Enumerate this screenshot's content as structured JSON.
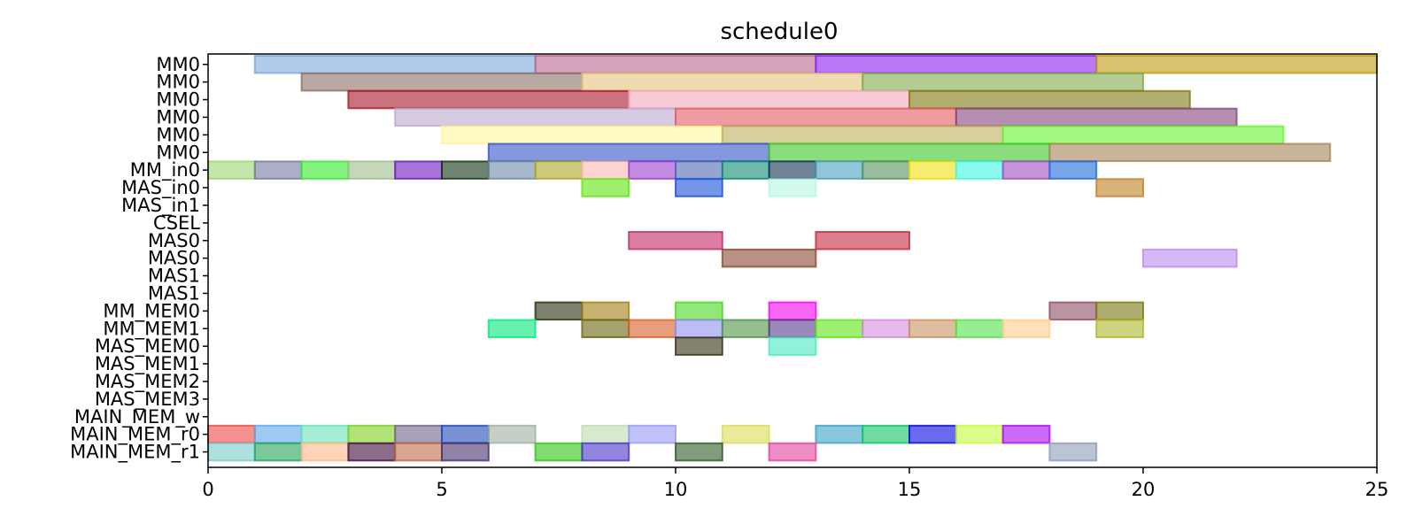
{
  "chart_data": {
    "type": "gantt",
    "title": "schedule0",
    "xlabel": "",
    "ylabel": "",
    "xlim": [
      0,
      25
    ],
    "x_ticks": [
      0,
      5,
      10,
      15,
      20,
      25
    ],
    "grid": false,
    "rows": [
      "MM0",
      "MM0",
      "MM0",
      "MM0",
      "MM0",
      "MM0",
      "MM_in0",
      "MAS_in0",
      "MAS_in1",
      "CSEL",
      "MAS0",
      "MAS0",
      "MAS1",
      "MAS1",
      "MM_MEM0",
      "MM_MEM1",
      "MAS_MEM0",
      "MAS_MEM1",
      "MAS_MEM2",
      "MAS_MEM3",
      "MAIN_MEM_w",
      "MAIN_MEM_r0",
      "MAIN_MEM_r1"
    ],
    "bars": [
      {
        "row": 0,
        "start": 1,
        "end": 7,
        "color": "#7ba7da"
      },
      {
        "row": 0,
        "start": 7,
        "end": 13,
        "color": "#b5688f"
      },
      {
        "row": 0,
        "start": 13,
        "end": 19,
        "color": "#8a1ef0"
      },
      {
        "row": 0,
        "start": 19,
        "end": 25,
        "color": "#c0980f"
      },
      {
        "row": 1,
        "start": 2,
        "end": 8,
        "color": "#8c6f66"
      },
      {
        "row": 1,
        "start": 8,
        "end": 14,
        "color": "#e6c37c"
      },
      {
        "row": 1,
        "start": 14,
        "end": 20,
        "color": "#80aa4a"
      },
      {
        "row": 2,
        "start": 3,
        "end": 9,
        "color": "#a6152a"
      },
      {
        "row": 2,
        "start": 9,
        "end": 15,
        "color": "#f2aabb"
      },
      {
        "row": 2,
        "start": 15,
        "end": 21,
        "color": "#7e7810"
      },
      {
        "row": 3,
        "start": 4,
        "end": 10,
        "color": "#bca8cf"
      },
      {
        "row": 3,
        "start": 10,
        "end": 16,
        "color": "#e55a60"
      },
      {
        "row": 3,
        "start": 16,
        "end": 22,
        "color": "#86447c"
      },
      {
        "row": 4,
        "start": 5,
        "end": 11,
        "color": "#fff59a"
      },
      {
        "row": 4,
        "start": 11,
        "end": 17,
        "color": "#bfae5c"
      },
      {
        "row": 4,
        "start": 17,
        "end": 23,
        "color": "#64f52c"
      },
      {
        "row": 5,
        "start": 6,
        "end": 12,
        "color": "#3454c8"
      },
      {
        "row": 5,
        "start": 12,
        "end": 18,
        "color": "#3ec42a"
      },
      {
        "row": 5,
        "start": 18,
        "end": 24,
        "color": "#a58656"
      },
      {
        "row": 6,
        "start": 0,
        "end": 1,
        "color": "#9cd36e"
      },
      {
        "row": 6,
        "start": 1,
        "end": 2,
        "color": "#7678a0"
      },
      {
        "row": 6,
        "start": 2,
        "end": 3,
        "color": "#32ea2a"
      },
      {
        "row": 6,
        "start": 3,
        "end": 4,
        "color": "#9cbe8a"
      },
      {
        "row": 6,
        "start": 4,
        "end": 5,
        "color": "#6a17bf"
      },
      {
        "row": 6,
        "start": 5,
        "end": 6,
        "color": "#0f3313"
      },
      {
        "row": 6,
        "start": 6,
        "end": 7,
        "color": "#6e8aa6"
      },
      {
        "row": 6,
        "start": 7,
        "end": 8,
        "color": "#aca624"
      },
      {
        "row": 6,
        "start": 8,
        "end": 9,
        "color": "#fcb6b4"
      },
      {
        "row": 6,
        "start": 9,
        "end": 10,
        "color": "#9b3fd2"
      },
      {
        "row": 6,
        "start": 10,
        "end": 11,
        "color": "#5266b0"
      },
      {
        "row": 6,
        "start": 11,
        "end": 12,
        "color": "#0b8a72"
      },
      {
        "row": 6,
        "start": 12,
        "end": 13,
        "color": "#143454"
      },
      {
        "row": 6,
        "start": 13,
        "end": 14,
        "color": "#4aa0c0"
      },
      {
        "row": 6,
        "start": 14,
        "end": 15,
        "color": "#55905a"
      },
      {
        "row": 6,
        "start": 15,
        "end": 16,
        "color": "#f0df10"
      },
      {
        "row": 6,
        "start": 16,
        "end": 17,
        "color": "#40f6e2"
      },
      {
        "row": 6,
        "start": 17,
        "end": 18,
        "color": "#a04ebe"
      },
      {
        "row": 6,
        "start": 18,
        "end": 19,
        "color": "#1a6ad8"
      },
      {
        "row": 7,
        "start": 8,
        "end": 9,
        "color": "#5ee60e"
      },
      {
        "row": 7,
        "start": 10,
        "end": 11,
        "color": "#1750d8"
      },
      {
        "row": 7,
        "start": 12,
        "end": 13,
        "color": "#b4f6e2"
      },
      {
        "row": 7,
        "start": 19,
        "end": 20,
        "color": "#c08020"
      },
      {
        "row": 10,
        "start": 9,
        "end": 11,
        "color": "#c22a66"
      },
      {
        "row": 10,
        "start": 13,
        "end": 15,
        "color": "#c4283c"
      },
      {
        "row": 11,
        "start": 11,
        "end": 13,
        "color": "#8a4a30"
      },
      {
        "row": 11,
        "start": 20,
        "end": 22,
        "color": "#bb8af2"
      },
      {
        "row": 14,
        "start": 7,
        "end": 8,
        "color": "#2a2a0e"
      },
      {
        "row": 14,
        "start": 8,
        "end": 9,
        "color": "#a08014"
      },
      {
        "row": 14,
        "start": 10,
        "end": 11,
        "color": "#48d81e"
      },
      {
        "row": 14,
        "start": 12,
        "end": 13,
        "color": "#f602f4"
      },
      {
        "row": 14,
        "start": 18,
        "end": 19,
        "color": "#8e4c62"
      },
      {
        "row": 14,
        "start": 19,
        "end": 20,
        "color": "#7a7812"
      },
      {
        "row": 15,
        "start": 6,
        "end": 7,
        "color": "#04e878"
      },
      {
        "row": 15,
        "start": 8,
        "end": 9,
        "color": "#6a6410"
      },
      {
        "row": 15,
        "start": 9,
        "end": 10,
        "color": "#d85f28"
      },
      {
        "row": 15,
        "start": 10,
        "end": 11,
        "color": "#9290f0"
      },
      {
        "row": 15,
        "start": 11,
        "end": 12,
        "color": "#4f9448"
      },
      {
        "row": 15,
        "start": 12,
        "end": 13,
        "color": "#5a3a8e"
      },
      {
        "row": 15,
        "start": 13,
        "end": 14,
        "color": "#5ee614"
      },
      {
        "row": 15,
        "start": 14,
        "end": 15,
        "color": "#d48adb"
      },
      {
        "row": 15,
        "start": 15,
        "end": 16,
        "color": "#c89262"
      },
      {
        "row": 15,
        "start": 16,
        "end": 17,
        "color": "#50e246"
      },
      {
        "row": 15,
        "start": 17,
        "end": 18,
        "color": "#fecd8c"
      },
      {
        "row": 15,
        "start": 19,
        "end": 20,
        "color": "#acb62a"
      },
      {
        "row": 16,
        "start": 10,
        "end": 11,
        "color": "#33300f"
      },
      {
        "row": 16,
        "start": 12,
        "end": 13,
        "color": "#4ae8c0"
      },
      {
        "row": 21,
        "start": 0,
        "end": 1,
        "color": "#ef4a44"
      },
      {
        "row": 21,
        "start": 1,
        "end": 2,
        "color": "#5aa6ea"
      },
      {
        "row": 21,
        "start": 2,
        "end": 3,
        "color": "#6ae4ba"
      },
      {
        "row": 21,
        "start": 3,
        "end": 4,
        "color": "#7ecf1e"
      },
      {
        "row": 21,
        "start": 4,
        "end": 5,
        "color": "#72628e"
      },
      {
        "row": 21,
        "start": 5,
        "end": 6,
        "color": "#1e4ab8"
      },
      {
        "row": 21,
        "start": 6,
        "end": 7,
        "color": "#9eaea2"
      },
      {
        "row": 21,
        "start": 8,
        "end": 9,
        "color": "#c0dab0"
      },
      {
        "row": 21,
        "start": 9,
        "end": 10,
        "color": "#9a9af8"
      },
      {
        "row": 21,
        "start": 11,
        "end": 12,
        "color": "#dcdc56"
      },
      {
        "row": 21,
        "start": 13,
        "end": 14,
        "color": "#3ca0c4"
      },
      {
        "row": 21,
        "start": 14,
        "end": 15,
        "color": "#10c464"
      },
      {
        "row": 21,
        "start": 15,
        "end": 16,
        "color": "#0808e4"
      },
      {
        "row": 21,
        "start": 16,
        "end": 17,
        "color": "#c6fc3c"
      },
      {
        "row": 21,
        "start": 17,
        "end": 18,
        "color": "#a80af2"
      },
      {
        "row": 22,
        "start": 0,
        "end": 1,
        "color": "#78cccc"
      },
      {
        "row": 22,
        "start": 1,
        "end": 2,
        "color": "#22a45a"
      },
      {
        "row": 22,
        "start": 2,
        "end": 3,
        "color": "#feb88a"
      },
      {
        "row": 22,
        "start": 3,
        "end": 4,
        "color": "#3e0c3c"
      },
      {
        "row": 22,
        "start": 4,
        "end": 5,
        "color": "#c06a48"
      },
      {
        "row": 22,
        "start": 5,
        "end": 6,
        "color": "#46306e"
      },
      {
        "row": 22,
        "start": 7,
        "end": 8,
        "color": "#2ec414"
      },
      {
        "row": 22,
        "start": 8,
        "end": 9,
        "color": "#4a34c8"
      },
      {
        "row": 22,
        "start": 10,
        "end": 11,
        "color": "#2a5a26"
      },
      {
        "row": 22,
        "start": 12,
        "end": 13,
        "color": "#e2429c"
      },
      {
        "row": 22,
        "start": 18,
        "end": 19,
        "color": "#8c9cb6"
      }
    ]
  }
}
